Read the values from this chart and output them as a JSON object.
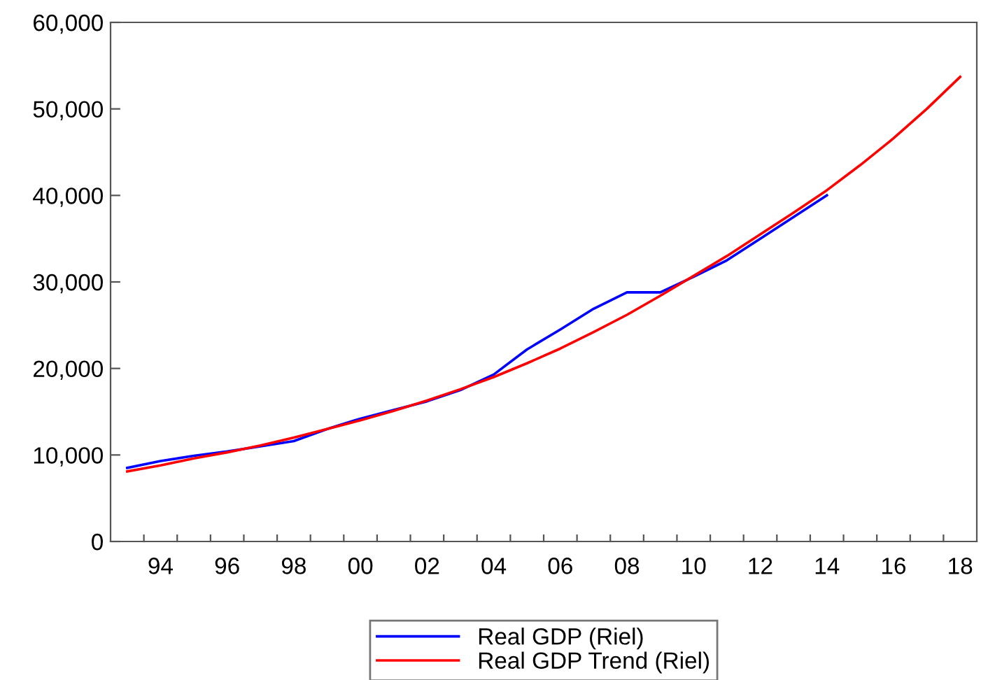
{
  "chart_data": {
    "type": "line",
    "x": [
      1993,
      1994,
      1995,
      1996,
      1997,
      1998,
      1999,
      2000,
      2001,
      2002,
      2003,
      2004,
      2005,
      2006,
      2007,
      2008,
      2009,
      2010,
      2011,
      2012,
      2013,
      2014,
      2015,
      2016,
      2017,
      2018
    ],
    "series": [
      {
        "name": "Real GDP (Riel)",
        "color": "#0000ff",
        "values": [
          8500,
          9300,
          9900,
          10400,
          11000,
          11600,
          13000,
          14200,
          15200,
          16200,
          17500,
          19300,
          22200,
          24500,
          26900,
          28800,
          28800,
          30600,
          32500,
          35000,
          37500,
          40000,
          null,
          null,
          null,
          null
        ]
      },
      {
        "name": "Real GDP Trend (Riel)",
        "color": "#ff0000",
        "values": [
          8100,
          8800,
          9600,
          10300,
          11100,
          12000,
          13000,
          14000,
          15100,
          16300,
          17600,
          19000,
          20600,
          22300,
          24200,
          26200,
          28400,
          30700,
          33000,
          35500,
          38000,
          40600,
          43500,
          46600,
          50000,
          53700
        ]
      }
    ],
    "xlim": [
      1992.5,
      2018.5
    ],
    "xticks": [
      {
        "value": 1993.5,
        "label": null
      },
      {
        "value": 1994,
        "label": "94"
      },
      {
        "value": 1994.5,
        "label": null
      },
      {
        "value": 1995.5,
        "label": null
      },
      {
        "value": 1996,
        "label": "96"
      },
      {
        "value": 1996.5,
        "label": null
      },
      {
        "value": 1997.5,
        "label": null
      },
      {
        "value": 1998,
        "label": "98"
      },
      {
        "value": 1998.5,
        "label": null
      },
      {
        "value": 1999.5,
        "label": null
      },
      {
        "value": 2000,
        "label": "00"
      },
      {
        "value": 2000.5,
        "label": null
      },
      {
        "value": 2001.5,
        "label": null
      },
      {
        "value": 2002,
        "label": "02"
      },
      {
        "value": 2002.5,
        "label": null
      },
      {
        "value": 2003.5,
        "label": null
      },
      {
        "value": 2004,
        "label": "04"
      },
      {
        "value": 2004.5,
        "label": null
      },
      {
        "value": 2005.5,
        "label": null
      },
      {
        "value": 2006,
        "label": "06"
      },
      {
        "value": 2006.5,
        "label": null
      },
      {
        "value": 2007.5,
        "label": null
      },
      {
        "value": 2008,
        "label": "08"
      },
      {
        "value": 2008.5,
        "label": null
      },
      {
        "value": 2009.5,
        "label": null
      },
      {
        "value": 2010,
        "label": "10"
      },
      {
        "value": 2010.5,
        "label": null
      },
      {
        "value": 2011.5,
        "label": null
      },
      {
        "value": 2012,
        "label": "12"
      },
      {
        "value": 2012.5,
        "label": null
      },
      {
        "value": 2013.5,
        "label": null
      },
      {
        "value": 2014,
        "label": "14"
      },
      {
        "value": 2014.5,
        "label": null
      },
      {
        "value": 2015.5,
        "label": null
      },
      {
        "value": 2016,
        "label": "16"
      },
      {
        "value": 2016.5,
        "label": null
      },
      {
        "value": 2017.5,
        "label": null
      },
      {
        "value": 2018,
        "label": "18"
      }
    ],
    "ylim": [
      0,
      60000
    ],
    "yticks": [
      0,
      {
        "value": 10000,
        "label": "10,000"
      },
      {
        "value": 20000,
        "label": "20,000"
      },
      {
        "value": 30000,
        "label": "30,000"
      },
      {
        "value": 40000,
        "label": "40,000"
      },
      {
        "value": 50000,
        "label": "50,000"
      },
      {
        "value": 60000,
        "label": "60,000"
      }
    ],
    "grid": false,
    "legend": "bottom",
    "marker": "none",
    "line_style": "solid"
  }
}
